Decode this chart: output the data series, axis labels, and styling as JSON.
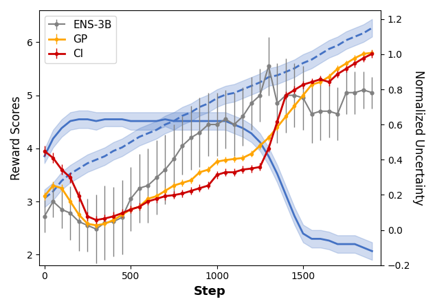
{
  "title": "",
  "xlabel": "Step",
  "ylabel_left": "Reward Scores",
  "ylabel_right": "Normalized Uncertainty",
  "xlim": [
    -30,
    1950
  ],
  "ylim_left": [
    1.8,
    6.6
  ],
  "ylim_right": [
    -0.2,
    1.25
  ],
  "legend_labels": [
    "ENS-3B",
    "GP",
    "CI"
  ],
  "legend_colors": [
    "#808080",
    "#FFA500",
    "#CC0000"
  ],
  "ens3b_x": [
    0,
    50,
    100,
    150,
    200,
    250,
    300,
    350,
    400,
    450,
    500,
    550,
    600,
    650,
    700,
    750,
    800,
    850,
    900,
    950,
    1000,
    1050,
    1100,
    1150,
    1200,
    1250,
    1300,
    1350,
    1400,
    1450,
    1500,
    1550,
    1600,
    1650,
    1700,
    1750,
    1800,
    1850,
    1900
  ],
  "ens3b_y": [
    2.72,
    3.0,
    2.85,
    2.78,
    2.62,
    2.55,
    2.48,
    2.6,
    2.62,
    2.7,
    3.05,
    3.25,
    3.3,
    3.45,
    3.6,
    3.8,
    4.05,
    4.2,
    4.3,
    4.45,
    4.45,
    4.55,
    4.45,
    4.6,
    4.85,
    5.0,
    5.55,
    4.85,
    5.0,
    5.0,
    4.95,
    4.65,
    4.7,
    4.7,
    4.65,
    5.05,
    5.05,
    5.1,
    5.05
  ],
  "ens3b_err": [
    0.3,
    0.3,
    0.35,
    0.5,
    0.55,
    0.5,
    0.65,
    0.7,
    0.65,
    0.7,
    0.6,
    0.65,
    0.7,
    0.7,
    0.65,
    0.65,
    0.55,
    0.6,
    0.65,
    0.6,
    0.6,
    0.55,
    0.6,
    0.55,
    0.5,
    0.5,
    0.55,
    0.75,
    0.7,
    0.6,
    0.6,
    0.55,
    0.55,
    0.5,
    0.5,
    0.4,
    0.4,
    0.35,
    0.3
  ],
  "gp_x": [
    0,
    50,
    100,
    150,
    200,
    250,
    300,
    350,
    400,
    450,
    500,
    550,
    600,
    650,
    700,
    750,
    800,
    850,
    900,
    950,
    1000,
    1050,
    1100,
    1150,
    1200,
    1250,
    1300,
    1350,
    1400,
    1450,
    1500,
    1550,
    1600,
    1650,
    1700,
    1750,
    1800,
    1850,
    1900
  ],
  "gp_y": [
    3.1,
    3.3,
    3.25,
    3.0,
    2.75,
    2.58,
    2.55,
    2.58,
    2.65,
    2.75,
    2.85,
    2.9,
    3.05,
    3.1,
    3.2,
    3.3,
    3.35,
    3.4,
    3.55,
    3.6,
    3.75,
    3.78,
    3.8,
    3.82,
    3.9,
    4.05,
    4.2,
    4.4,
    4.6,
    4.8,
    5.0,
    5.2,
    5.25,
    5.35,
    5.5,
    5.6,
    5.7,
    5.78,
    5.8
  ],
  "gp_err": [
    0.07,
    0.07,
    0.07,
    0.07,
    0.06,
    0.06,
    0.06,
    0.06,
    0.06,
    0.06,
    0.06,
    0.06,
    0.06,
    0.06,
    0.06,
    0.06,
    0.06,
    0.06,
    0.06,
    0.06,
    0.06,
    0.06,
    0.06,
    0.06,
    0.06,
    0.06,
    0.06,
    0.06,
    0.06,
    0.06,
    0.06,
    0.06,
    0.06,
    0.06,
    0.06,
    0.06,
    0.06,
    0.06,
    0.06
  ],
  "ci_x": [
    0,
    50,
    100,
    150,
    200,
    250,
    300,
    350,
    400,
    450,
    500,
    550,
    600,
    650,
    700,
    750,
    800,
    850,
    900,
    950,
    1000,
    1050,
    1100,
    1150,
    1200,
    1250,
    1300,
    1350,
    1400,
    1450,
    1500,
    1550,
    1600,
    1650,
    1700,
    1750,
    1800,
    1850,
    1900
  ],
  "ci_y": [
    3.95,
    3.82,
    3.6,
    3.45,
    3.1,
    2.72,
    2.65,
    2.68,
    2.72,
    2.78,
    2.85,
    2.9,
    3.0,
    3.05,
    3.1,
    3.12,
    3.15,
    3.2,
    3.25,
    3.3,
    3.5,
    3.55,
    3.55,
    3.6,
    3.62,
    3.65,
    4.0,
    4.5,
    5.0,
    5.1,
    5.2,
    5.25,
    5.3,
    5.25,
    5.4,
    5.5,
    5.6,
    5.7,
    5.78
  ],
  "ci_err": [
    0.1,
    0.1,
    0.1,
    0.1,
    0.1,
    0.08,
    0.08,
    0.08,
    0.08,
    0.08,
    0.07,
    0.07,
    0.07,
    0.07,
    0.07,
    0.07,
    0.07,
    0.07,
    0.07,
    0.07,
    0.07,
    0.07,
    0.07,
    0.07,
    0.07,
    0.07,
    0.07,
    0.07,
    0.07,
    0.07,
    0.07,
    0.07,
    0.07,
    0.07,
    0.07,
    0.07,
    0.07,
    0.07,
    0.07
  ],
  "blue_solid_x": [
    0,
    50,
    100,
    150,
    200,
    250,
    300,
    350,
    400,
    450,
    500,
    550,
    600,
    650,
    700,
    750,
    800,
    850,
    900,
    950,
    1000,
    1050,
    1100,
    1150,
    1200,
    1250,
    1300,
    1350,
    1400,
    1450,
    1500,
    1550,
    1600,
    1650,
    1700,
    1750,
    1800,
    1850,
    1900
  ],
  "blue_solid_y": [
    0.42,
    0.52,
    0.58,
    0.62,
    0.63,
    0.63,
    0.62,
    0.63,
    0.63,
    0.63,
    0.62,
    0.62,
    0.62,
    0.62,
    0.63,
    0.62,
    0.62,
    0.62,
    0.62,
    0.62,
    0.62,
    0.62,
    0.6,
    0.58,
    0.55,
    0.5,
    0.42,
    0.32,
    0.2,
    0.08,
    -0.02,
    -0.05,
    -0.05,
    -0.06,
    -0.08,
    -0.08,
    -0.08,
    -0.1,
    -0.12
  ],
  "blue_solid_upper": [
    0.46,
    0.57,
    0.63,
    0.67,
    0.68,
    0.68,
    0.67,
    0.67,
    0.67,
    0.67,
    0.67,
    0.67,
    0.67,
    0.67,
    0.67,
    0.67,
    0.67,
    0.67,
    0.67,
    0.67,
    0.67,
    0.67,
    0.65,
    0.63,
    0.6,
    0.55,
    0.47,
    0.37,
    0.25,
    0.13,
    0.03,
    0.0,
    0.0,
    -0.01,
    -0.03,
    -0.03,
    -0.03,
    -0.05,
    -0.07
  ],
  "blue_solid_lower": [
    0.38,
    0.47,
    0.53,
    0.57,
    0.58,
    0.58,
    0.57,
    0.59,
    0.59,
    0.59,
    0.57,
    0.57,
    0.57,
    0.57,
    0.59,
    0.57,
    0.57,
    0.57,
    0.57,
    0.57,
    0.57,
    0.57,
    0.55,
    0.53,
    0.5,
    0.45,
    0.37,
    0.27,
    0.15,
    0.03,
    -0.07,
    -0.1,
    -0.1,
    -0.11,
    -0.13,
    -0.13,
    -0.13,
    -0.15,
    -0.17
  ],
  "blue_dashed_x": [
    0,
    50,
    100,
    150,
    200,
    250,
    300,
    350,
    400,
    450,
    500,
    550,
    600,
    650,
    700,
    750,
    800,
    850,
    900,
    950,
    1000,
    1050,
    1100,
    1150,
    1200,
    1250,
    1300,
    1350,
    1400,
    1450,
    1500,
    1550,
    1600,
    1650,
    1700,
    1750,
    1800,
    1850,
    1900
  ],
  "blue_dashed_y": [
    0.18,
    0.22,
    0.28,
    0.32,
    0.35,
    0.38,
    0.4,
    0.42,
    0.45,
    0.47,
    0.5,
    0.53,
    0.55,
    0.57,
    0.6,
    0.62,
    0.65,
    0.67,
    0.7,
    0.72,
    0.75,
    0.77,
    0.78,
    0.8,
    0.82,
    0.84,
    0.87,
    0.88,
    0.9,
    0.92,
    0.95,
    0.97,
    1.0,
    1.03,
    1.05,
    1.08,
    1.1,
    1.12,
    1.15
  ],
  "blue_dashed_upper": [
    0.23,
    0.27,
    0.33,
    0.37,
    0.4,
    0.43,
    0.45,
    0.47,
    0.5,
    0.52,
    0.55,
    0.58,
    0.6,
    0.62,
    0.65,
    0.67,
    0.7,
    0.72,
    0.75,
    0.77,
    0.8,
    0.82,
    0.83,
    0.85,
    0.87,
    0.89,
    0.92,
    0.93,
    0.95,
    0.97,
    1.0,
    1.02,
    1.05,
    1.08,
    1.1,
    1.13,
    1.15,
    1.17,
    1.2
  ],
  "blue_dashed_lower": [
    0.13,
    0.17,
    0.23,
    0.27,
    0.3,
    0.33,
    0.35,
    0.37,
    0.4,
    0.42,
    0.45,
    0.48,
    0.5,
    0.52,
    0.55,
    0.57,
    0.6,
    0.62,
    0.65,
    0.67,
    0.7,
    0.72,
    0.73,
    0.75,
    0.77,
    0.79,
    0.82,
    0.83,
    0.85,
    0.87,
    0.9,
    0.92,
    0.95,
    0.98,
    1.0,
    1.03,
    1.05,
    1.07,
    1.1
  ],
  "blue_color": "#4472C4",
  "blue_alpha_fill": 0.25,
  "gray_color": "#808080",
  "orange_color": "#FFA500",
  "red_color": "#CC0000"
}
